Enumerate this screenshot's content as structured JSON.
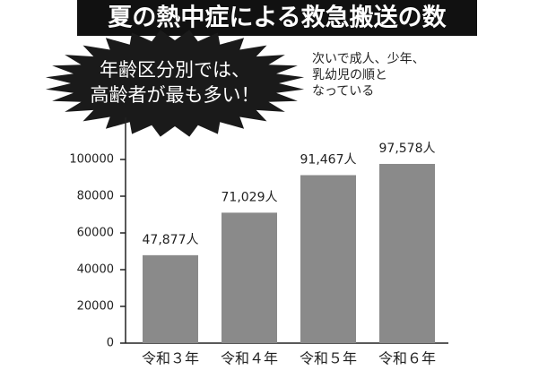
{
  "chart_data": {
    "type": "bar",
    "title": "夏の熱中症による救急搬送の数",
    "callout": [
      "年齢区分別では、",
      "高齢者が最も多い！"
    ],
    "annotation": [
      "次いで成人、少年、",
      "乳幼児の順と",
      "なっている"
    ],
    "categories": [
      "令和３年",
      "令和４年",
      "令和５年",
      "令和６年"
    ],
    "values": [
      47877,
      71029,
      91467,
      97578
    ],
    "value_labels": [
      "47,877人",
      "71,029人",
      "91,467人",
      "97,578人"
    ],
    "color": "#8a8a8a",
    "ylim": [
      0,
      120000
    ],
    "yticks": [
      0,
      20000,
      40000,
      60000,
      80000,
      100000
    ],
    "grid": false
  }
}
